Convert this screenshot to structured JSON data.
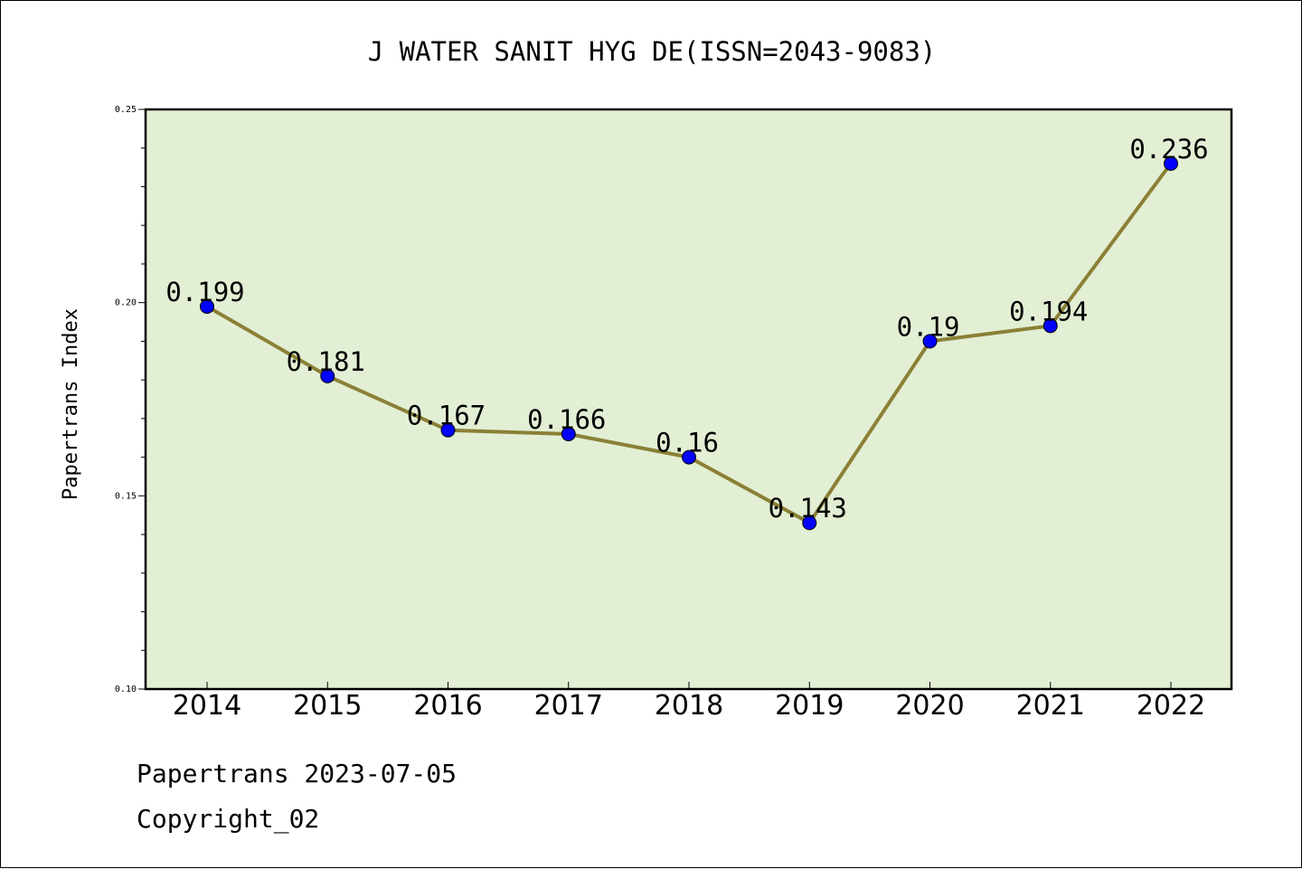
{
  "chart_data": {
    "type": "line",
    "title": "J WATER SANIT HYG DE(ISSN=2043-9083)",
    "ylabel": "Papertrans Index",
    "xlabel": "",
    "ylim": [
      0.1,
      0.25
    ],
    "yticks": [
      "0.10",
      "0.15",
      "0.20",
      "0.25"
    ],
    "ytick_values": [
      0.1,
      0.15,
      0.2,
      0.25
    ],
    "x": [
      "2014",
      "2015",
      "2016",
      "2017",
      "2018",
      "2019",
      "2020",
      "2021",
      "2022"
    ],
    "values": [
      0.199,
      0.181,
      0.167,
      0.166,
      0.16,
      0.143,
      0.19,
      0.194,
      0.236
    ],
    "data_labels": [
      "0.199",
      "0.181",
      "0.167",
      "0.166",
      "0.16",
      "0.143",
      "0.19",
      "0.194",
      "0.236"
    ],
    "grid": false,
    "legend": "none",
    "colors": {
      "plot_background": "#e2efd4",
      "line": "#8b8036",
      "marker": "#0000ff"
    }
  },
  "footer": {
    "line1": "Papertrans 2023-07-05",
    "line2": "Copyright_02"
  }
}
